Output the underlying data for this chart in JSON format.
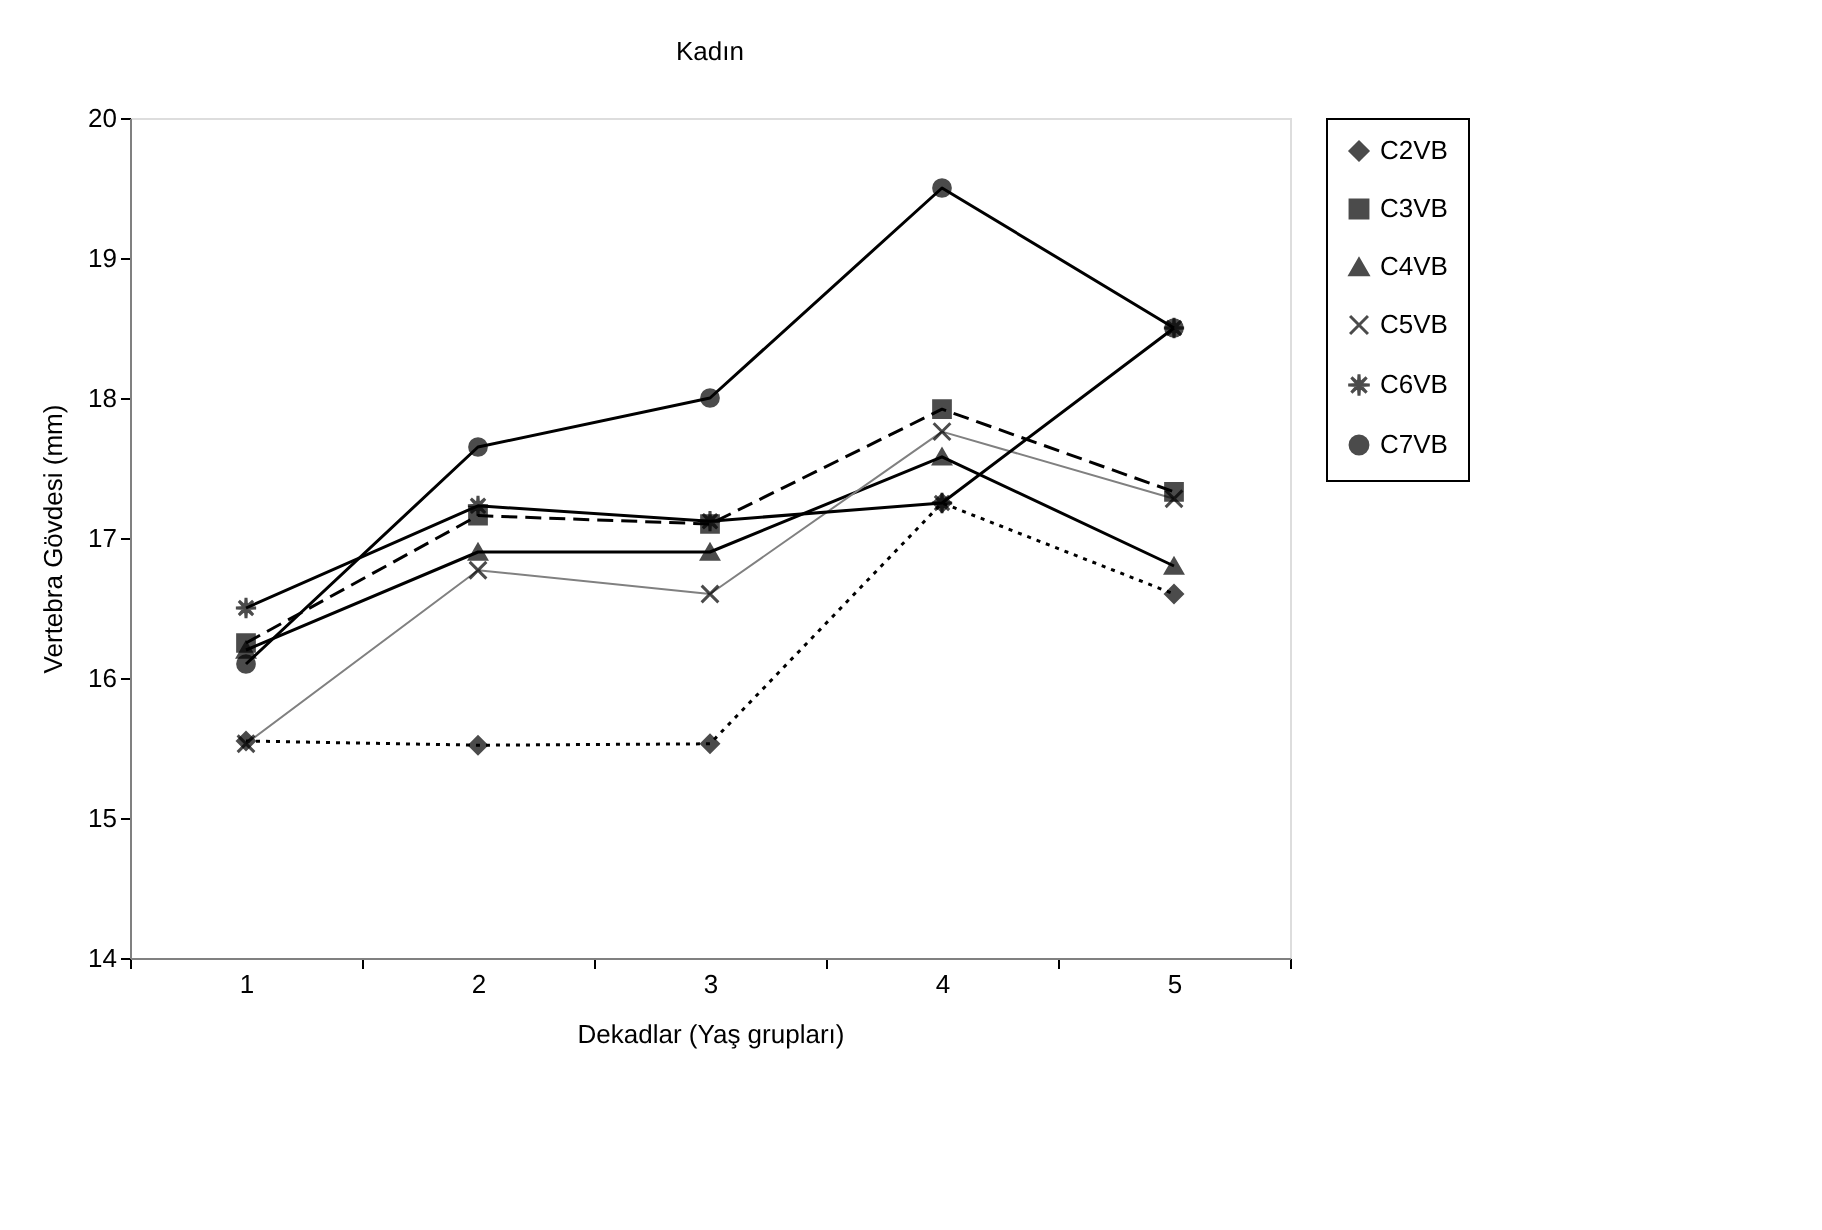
{
  "chart_data": {
    "type": "line",
    "title": "Kadın",
    "xlabel": "Dekadlar (Yaş grupları)",
    "ylabel": "Vertebra Gövdesi (mm)",
    "categories": [
      "1",
      "2",
      "3",
      "4",
      "5"
    ],
    "series": [
      {
        "name": "C2VB",
        "color": "#000000",
        "marker": "diamond",
        "line_style": "dotted",
        "values": [
          15.55,
          15.52,
          15.53,
          17.25,
          16.6
        ]
      },
      {
        "name": "C3VB",
        "color": "#000000",
        "marker": "square",
        "line_style": "dashed",
        "values": [
          16.25,
          17.16,
          17.1,
          17.92,
          17.33
        ]
      },
      {
        "name": "C4VB",
        "color": "#000000",
        "marker": "triangle",
        "line_style": "solid",
        "values": [
          16.2,
          16.9,
          16.9,
          17.58,
          16.8
        ]
      },
      {
        "name": "C5VB",
        "color": "#808080",
        "marker": "cross",
        "line_style": "solid",
        "values": [
          15.53,
          16.77,
          16.6,
          17.76,
          17.28
        ]
      },
      {
        "name": "C6VB",
        "color": "#000000",
        "marker": "star",
        "line_style": "solid",
        "values": [
          16.5,
          17.23,
          17.12,
          17.25,
          18.5
        ]
      },
      {
        "name": "C7VB",
        "color": "#000000",
        "marker": "circle",
        "line_style": "solid",
        "values": [
          16.1,
          17.65,
          18.0,
          19.5,
          18.5
        ]
      }
    ],
    "ylim": [
      14,
      20
    ],
    "yticks": [
      14,
      15,
      16,
      17,
      18,
      19,
      20
    ],
    "grid": false,
    "legend": "right"
  }
}
